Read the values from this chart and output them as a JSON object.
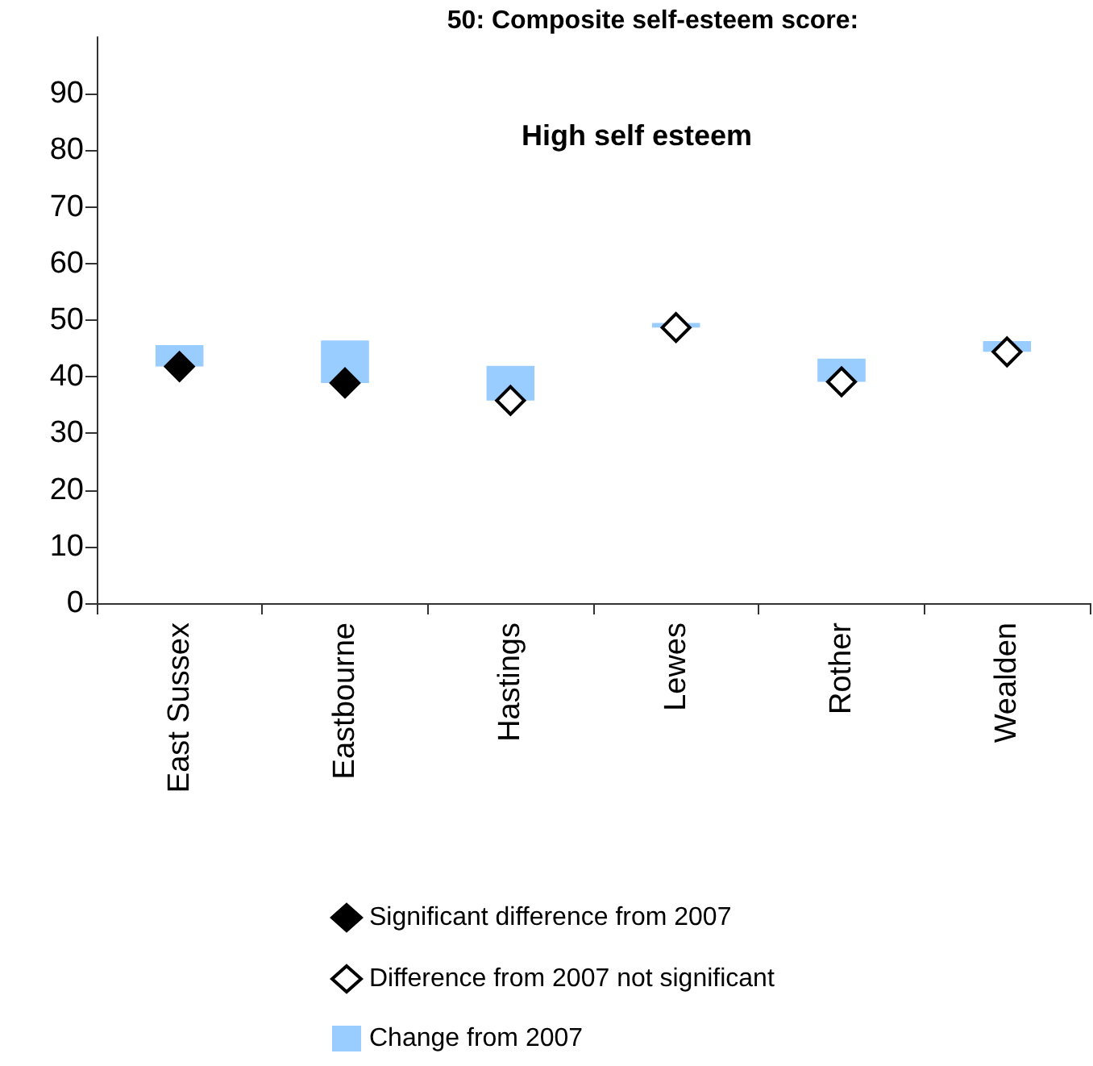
{
  "chart_data": {
    "type": "bar",
    "title": "50: Composite self-esteem score:",
    "subtitle": "High self esteem",
    "categories": [
      "East Sussex",
      "Eastbourne",
      "Hastings",
      "Lewes",
      "Rother",
      "Wealden"
    ],
    "series": [
      {
        "name": "Significant difference from 2007",
        "type": "scatter",
        "marker": "diamond",
        "color": "#000000",
        "values": [
          41.8,
          38.9,
          null,
          null,
          null,
          null
        ]
      },
      {
        "name": "Difference from 2007 not significant",
        "type": "scatter",
        "marker": "diamond",
        "color": "#ffffff",
        "values": [
          null,
          null,
          35.8,
          48.7,
          39.1,
          44.4
        ]
      },
      {
        "name": "Change from 2007",
        "color": "#99ccff",
        "base": [
          41.8,
          38.9,
          35.8,
          48.7,
          39.1,
          44.4
        ],
        "values": [
          3.8,
          7.5,
          6.1,
          0.8,
          4.1,
          1.9
        ]
      }
    ],
    "ylim": [
      0,
      100
    ],
    "yticks": [
      0,
      10,
      20,
      30,
      40,
      50,
      60,
      70,
      80,
      90
    ],
    "grid": false,
    "legend": "bottom"
  }
}
